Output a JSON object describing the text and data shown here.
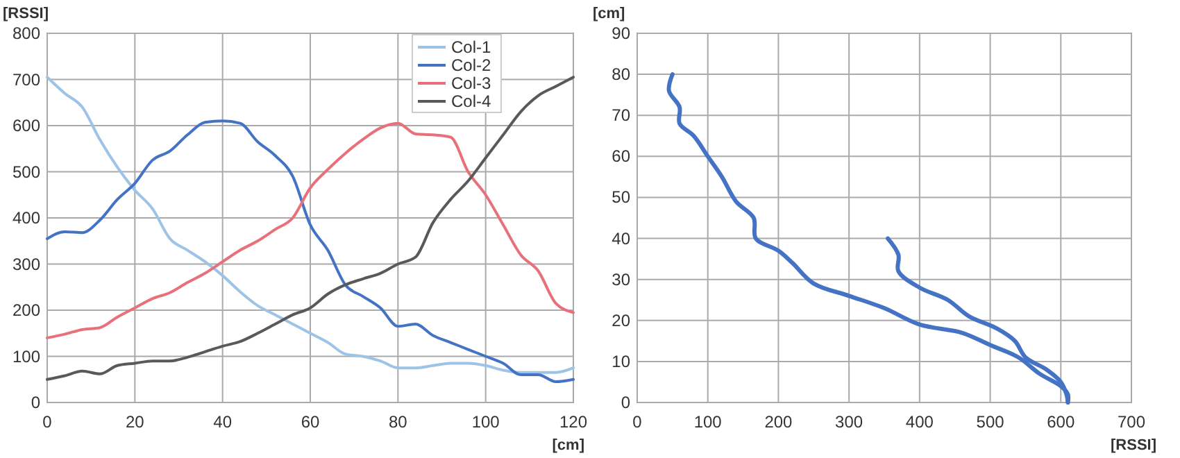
{
  "chart_data": [
    {
      "type": "line",
      "xlabel": "[cm]",
      "ylabel": "[RSSI]",
      "x": [
        0,
        4,
        8,
        12,
        16,
        20,
        24,
        28,
        32,
        36,
        40,
        44,
        48,
        52,
        56,
        60,
        64,
        68,
        72,
        76,
        80,
        84,
        88,
        92,
        96,
        100,
        104,
        108,
        112,
        116,
        120
      ],
      "xlim": [
        0,
        120
      ],
      "xticks": [
        0,
        20,
        40,
        60,
        80,
        100,
        120
      ],
      "ylim": [
        0,
        800
      ],
      "yticks": [
        0,
        100,
        200,
        300,
        400,
        500,
        600,
        700,
        800
      ],
      "grid": true,
      "legend": "top right",
      "series": [
        {
          "name": "Col-1",
          "color": "#9dc3e6",
          "values": [
            705,
            670,
            640,
            570,
            510,
            460,
            420,
            355,
            330,
            305,
            275,
            240,
            210,
            190,
            170,
            150,
            130,
            105,
            100,
            90,
            75,
            75,
            80,
            85,
            85,
            80,
            70,
            65,
            65,
            65,
            75
          ]
        },
        {
          "name": "Col-2",
          "color": "#4472c4",
          "values": [
            355,
            370,
            368,
            395,
            440,
            475,
            525,
            545,
            580,
            607,
            610,
            605,
            565,
            535,
            490,
            385,
            330,
            255,
            230,
            205,
            165,
            170,
            145,
            130,
            115,
            100,
            85,
            60,
            60,
            45,
            50
          ]
        },
        {
          "name": "Col-3",
          "color": "#e8707a",
          "values": [
            140,
            148,
            158,
            162,
            185,
            205,
            225,
            238,
            260,
            280,
            305,
            330,
            350,
            375,
            400,
            465,
            505,
            540,
            570,
            595,
            605,
            582,
            580,
            575,
            500,
            450,
            385,
            320,
            285,
            215,
            195
          ]
        },
        {
          "name": "Col-4",
          "color": "#595959",
          "values": [
            50,
            58,
            68,
            62,
            80,
            85,
            90,
            90,
            98,
            110,
            122,
            132,
            150,
            170,
            190,
            205,
            235,
            255,
            268,
            280,
            300,
            315,
            390,
            440,
            480,
            530,
            580,
            630,
            665,
            685,
            705
          ]
        }
      ]
    },
    {
      "type": "line",
      "xlabel": "[RSSI]",
      "ylabel": "[cm]",
      "xlim": [
        0,
        700
      ],
      "xticks": [
        0,
        100,
        200,
        300,
        400,
        500,
        600,
        700
      ],
      "ylim": [
        0,
        90
      ],
      "yticks": [
        0,
        10,
        20,
        30,
        40,
        50,
        60,
        70,
        80,
        90
      ],
      "grid": true,
      "series": [
        {
          "color": "#4472c4",
          "x": [
            50,
            45,
            60,
            60,
            80,
            100,
            120,
            140,
            165,
            168,
            200,
            220,
            250,
            300,
            350,
            400,
            460,
            500,
            540,
            570,
            600,
            610,
            610
          ],
          "values": [
            80,
            76,
            72,
            68,
            65,
            60,
            55,
            49,
            45,
            40,
            37,
            34,
            29,
            26,
            23,
            19,
            17,
            14,
            11,
            7,
            4,
            2,
            0
          ]
        },
        {
          "color": "#4472c4",
          "x": [
            355,
            370,
            370,
            400,
            440,
            470,
            510,
            535,
            550,
            580,
            600,
            608,
            610
          ],
          "values": [
            40,
            36,
            32,
            28,
            25,
            21,
            18,
            15,
            11,
            8,
            5,
            2,
            0
          ]
        }
      ]
    }
  ]
}
